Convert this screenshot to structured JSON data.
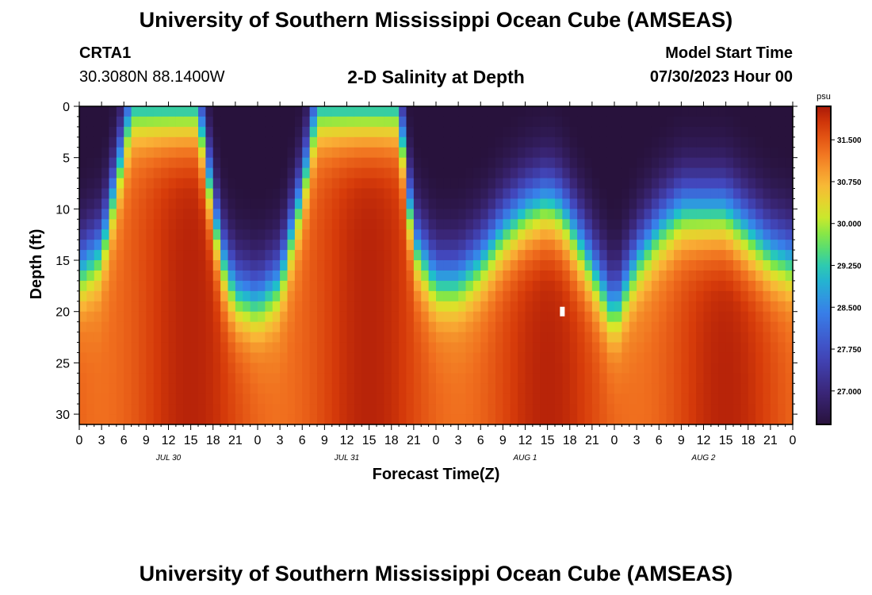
{
  "header": {
    "main_title": "University of Southern Mississippi Ocean Cube (AMSEAS)",
    "station_id": "CRTA1",
    "station_coords": "30.3080N  88.1400W",
    "model_label": "Model Start Time",
    "model_date": "07/30/2023 Hour 00"
  },
  "footer": {
    "title": "University of Southern Mississippi Ocean Cube (AMSEAS)"
  },
  "chart_data": {
    "type": "heatmap",
    "title": "2-D Salinity at Depth",
    "xlabel": "Forecast Time(Z)",
    "ylabel": "Depth (ft)",
    "x_hours_range": [
      0,
      96
    ],
    "x_tick_step_hours": 3,
    "x_tick_labels": [
      "0",
      "3",
      "6",
      "9",
      "12",
      "15",
      "18",
      "21",
      "0",
      "3",
      "6",
      "9",
      "12",
      "15",
      "18",
      "21",
      "0",
      "3",
      "6",
      "9",
      "12",
      "15",
      "18",
      "21",
      "0",
      "3",
      "6",
      "9",
      "12",
      "15",
      "18",
      "21",
      "0"
    ],
    "date_labels": [
      {
        "label": "JUL 30",
        "hour": 12
      },
      {
        "label": "JUL 31",
        "hour": 36
      },
      {
        "label": "AUG 1",
        "hour": 60
      },
      {
        "label": "AUG 2",
        "hour": 84
      }
    ],
    "y_range_ft": [
      0,
      31
    ],
    "y_ticks": [
      0,
      5,
      10,
      15,
      20,
      25,
      30
    ],
    "colorbar": {
      "unit": "psu",
      "range": [
        26.4,
        32.1
      ],
      "ticks": [
        "27.000",
        "27.750",
        "28.500",
        "29.250",
        "30.000",
        "30.750",
        "31.500"
      ],
      "tick_values": [
        27.0,
        27.75,
        28.5,
        29.25,
        30.0,
        30.75,
        31.5
      ]
    },
    "fresh_layer": {
      "description": "near-surface low-salinity layer; values are depth of halocline (ft) by forecast hour",
      "hours": [
        0,
        3,
        5,
        7,
        9,
        12,
        16,
        19,
        21,
        24,
        27,
        30,
        32,
        34,
        36,
        40,
        43,
        45,
        48,
        51,
        54,
        57,
        60,
        63,
        65,
        68,
        72,
        75,
        78,
        81,
        84,
        87,
        90,
        93,
        96
      ],
      "depth_ft": [
        16,
        14,
        7,
        0,
        0,
        0,
        0,
        14,
        18,
        19,
        17,
        8,
        0,
        0,
        0,
        0,
        0,
        13,
        17,
        17,
        15,
        12,
        10,
        9,
        10,
        14,
        20,
        15,
        12,
        10,
        10,
        10,
        12,
        14,
        15
      ]
    },
    "surface_min_psu": 26.6,
    "deep_max_psu": 31.9,
    "annotations": [
      {
        "label": "marker",
        "hour": 65,
        "depth_ft": 20
      }
    ]
  }
}
